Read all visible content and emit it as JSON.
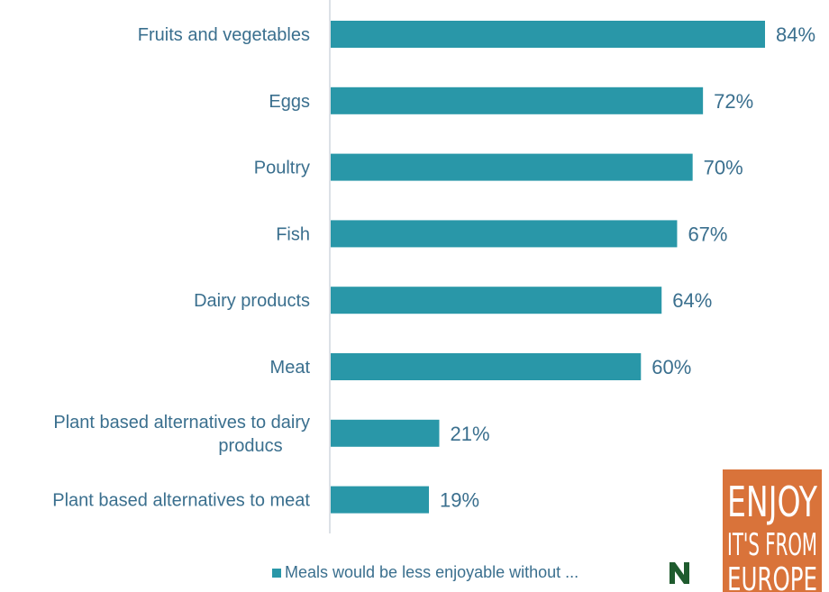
{
  "chart_data": {
    "type": "bar",
    "orientation": "horizontal",
    "categories": [
      "Fruits and vegetables",
      "Eggs",
      "Poultry",
      "Fish",
      "Dairy products",
      "Meat",
      "Plant based alternatives to dairy producs",
      "Plant based alternatives to meat"
    ],
    "series": [
      {
        "name": "Meals would be less enjoyable without ...",
        "values": [
          84,
          72,
          70,
          67,
          64,
          60,
          21,
          19
        ],
        "labels": [
          "84%",
          "72%",
          "70%",
          "67%",
          "64%",
          "60%",
          "21%",
          "19%"
        ],
        "color": "#2997a8"
      }
    ],
    "xlim": [
      0,
      84
    ],
    "grid": false,
    "legend_position": "bottom"
  },
  "colors": {
    "bar": "#2997a8",
    "text": "#3a6f8e",
    "axis": "#d0d7de",
    "logo_orange": "#d9733a",
    "logo_green": "#1f5b2e"
  },
  "logos": {
    "enjoy": {
      "lines": [
        "ENJOY",
        "IT'S FROM",
        "EUROPE"
      ]
    },
    "n_mark": "N"
  }
}
